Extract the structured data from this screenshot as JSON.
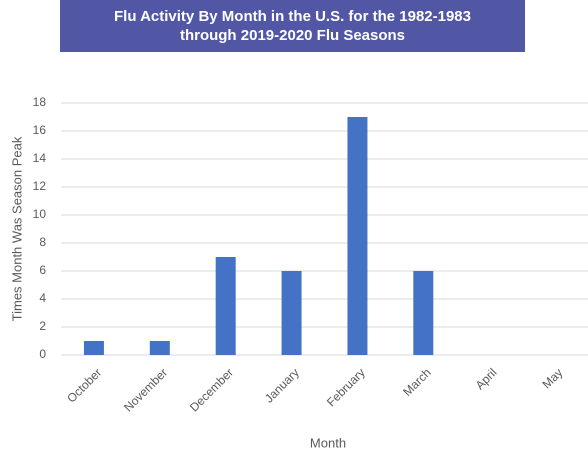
{
  "chart_data": {
    "type": "bar",
    "title": "Flu Activity By Month in the U.S. for the 1982-1983 through 2019-2020 Flu Seasons",
    "x_label": "Month",
    "y_label": "Times Month Was Season Peak",
    "categories": [
      "October",
      "November",
      "December",
      "January",
      "February",
      "March",
      "April",
      "May"
    ],
    "values": [
      1,
      1,
      7,
      6,
      17,
      6,
      0,
      0
    ],
    "color": "#4472c4",
    "ylim": [
      0,
      18
    ],
    "yticks": [
      0,
      2,
      4,
      6,
      8,
      10,
      12,
      14,
      16,
      18
    ],
    "grid": true
  }
}
